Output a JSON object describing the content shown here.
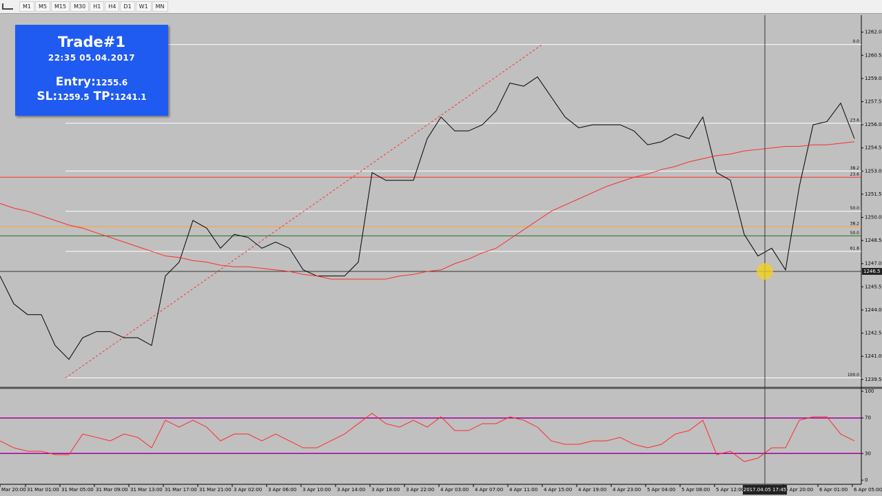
{
  "toolbar": {
    "timeframes": [
      "M1",
      "M5",
      "M15",
      "M30",
      "H1",
      "H4",
      "D1",
      "W1",
      "MN"
    ]
  },
  "trade_box": {
    "title": "Trade#1",
    "datetime": "22:35 05.04.2017",
    "entry_label": "Entry:",
    "entry": 1255.6,
    "sl_label": "SL:",
    "sl": 1259.5,
    "tp_label": "TP:",
    "tp": 1241.1
  },
  "crosshair": {
    "x": 55.5,
    "label": "2017.04.05 17:45"
  },
  "chart_data": [
    {
      "type": "line",
      "xlim": [
        0,
        62.5
      ],
      "ylim": [
        1239.0,
        1263.1
      ],
      "yticks": [
        {
          "value": 1262.0,
          "label": "1262.0"
        },
        1260.5,
        {
          "value": 1259.0,
          "label": "1259.0"
        },
        1257.5,
        {
          "value": 1256.0,
          "label": "1256.0"
        },
        1254.5,
        {
          "value": 1253.0,
          "label": "1253.0"
        },
        1251.5,
        {
          "value": 1250.0,
          "label": "1250.0"
        },
        1248.5,
        {
          "value": 1247.0,
          "label": "1247.0"
        },
        1245.5,
        {
          "value": 1244.0,
          "label": "1244.0"
        },
        1242.5,
        {
          "value": 1241.0,
          "label": "1241.0"
        },
        1239.5
      ],
      "series": [
        {
          "color": "#000000",
          "values": [
            1246.2,
            1244.4,
            1243.7,
            1243.7,
            1241.7,
            1240.8,
            1242.2,
            1242.6,
            1242.6,
            1242.2,
            1242.2,
            1241.7,
            1246.2,
            1247.1,
            1249.8,
            1249.3,
            1248.0,
            1248.9,
            1248.7,
            1248.0,
            1248.4,
            1248.0,
            1246.6,
            1246.2,
            1246.2,
            1246.2,
            1247.1,
            1252.9,
            1252.4,
            1252.4,
            1252.4,
            1255.1,
            1256.5,
            1255.6,
            1255.6,
            1256.0,
            1256.9,
            1258.7,
            1258.5,
            1259.1,
            1257.8,
            1256.5,
            1255.8,
            1256.0,
            1256.0,
            1256.0,
            1255.6,
            1254.7,
            1254.9,
            1255.4,
            1255.1,
            1256.5,
            1252.9,
            1252.4,
            1248.9,
            1247.5,
            1248.0,
            1246.6,
            1252.0,
            1256.0,
            1256.2,
            1257.4,
            1255.1
          ]
        },
        {
          "color": "#ff2a2a",
          "values": [
            1250.9,
            1250.6,
            1250.4,
            1250.1,
            1249.8,
            1249.5,
            1249.3,
            1249.0,
            1248.7,
            1248.4,
            1248.1,
            1247.8,
            1247.5,
            1247.4,
            1247.2,
            1247.1,
            1246.9,
            1246.8,
            1246.8,
            1246.7,
            1246.6,
            1246.5,
            1246.3,
            1246.2,
            1246.0,
            1246.0,
            1246.0,
            1246.0,
            1246.0,
            1246.2,
            1246.3,
            1246.5,
            1246.6,
            1247.0,
            1247.3,
            1247.7,
            1248.0,
            1248.6,
            1249.2,
            1249.8,
            1250.4,
            1250.8,
            1251.2,
            1251.6,
            1252.0,
            1252.3,
            1252.6,
            1252.8,
            1253.1,
            1253.3,
            1253.6,
            1253.8,
            1254.0,
            1254.1,
            1254.3,
            1254.4,
            1254.5,
            1254.6,
            1254.6,
            1254.7,
            1254.7,
            1254.8,
            1254.9
          ]
        }
      ],
      "levels": [
        {
          "value": 1261.2,
          "label": "0.0",
          "color": "#ffffff"
        },
        {
          "value": 1256.1,
          "label": "23.6",
          "color": "#ffffff"
        },
        {
          "value": 1253.0,
          "label": "38.2",
          "color": "#ffffff"
        },
        {
          "value": 1250.4,
          "label": "50.0",
          "color": "#ffffff"
        },
        {
          "value": 1247.8,
          "label": "61.8",
          "color": "#ffffff"
        },
        {
          "value": 1239.6,
          "label": "100.0",
          "color": "#ffffff"
        },
        {
          "value": 1252.6,
          "label": "23.6",
          "color": "#ff2a2a"
        },
        {
          "value": 1249.4,
          "label": "38.2",
          "color": "#ffa030"
        },
        {
          "value": 1248.8,
          "label": "50.0",
          "color": "#207020"
        }
      ],
      "current_price": 1246.5,
      "trendline": {
        "x": [
          4.75,
          39.35
        ],
        "y": [
          1239.6,
          1261.2
        ],
        "color": "#ff2a2a"
      }
    },
    {
      "type": "line",
      "xlim": [
        0,
        62.5
      ],
      "ylim": [
        0,
        100
      ],
      "yticks": [
        100,
        70,
        30,
        0
      ],
      "level_lines": [
        70,
        30
      ],
      "level_color": "#a000a0",
      "xticks": [
        {
          "value": 0,
          "label": "Mar 20:00"
        },
        {
          "value": 1.85,
          "label": "31 Mar 01:00"
        },
        {
          "value": 4.35,
          "label": "31 Mar 05:00"
        },
        {
          "value": 6.85,
          "label": "31 Mar 09:00"
        },
        {
          "value": 9.35,
          "label": "31 Mar 13:00"
        },
        {
          "value": 11.85,
          "label": "31 Mar 17:00"
        },
        {
          "value": 14.35,
          "label": "31 Mar 21:00"
        },
        {
          "value": 16.85,
          "label": "3 Apr 02:00"
        },
        {
          "value": 19.35,
          "label": "3 Apr 06:00"
        },
        {
          "value": 21.85,
          "label": "3 Apr 10:00"
        },
        {
          "value": 24.35,
          "label": "3 Apr 14:00"
        },
        {
          "value": 26.85,
          "label": "3 Apr 18:00"
        },
        {
          "value": 29.35,
          "label": "3 Apr 22:00"
        },
        {
          "value": 31.85,
          "label": "4 Apr 03:00"
        },
        {
          "value": 34.35,
          "label": "4 Apr 07:00"
        },
        {
          "value": 36.85,
          "label": "4 Apr 11:00"
        },
        {
          "value": 39.35,
          "label": "4 Apr 15:00"
        },
        {
          "value": 41.85,
          "label": "4 Apr 19:00"
        },
        {
          "value": 44.35,
          "label": "4 Apr 23:00"
        },
        {
          "value": 46.85,
          "label": "5 Apr 04:00"
        },
        {
          "value": 49.35,
          "label": "5 Apr 08:00"
        },
        {
          "value": 51.85,
          "label": "5 Apr 12:00"
        },
        {
          "value": 56.85,
          "label": "5 Apr 20:00"
        },
        {
          "value": 59.35,
          "label": "6 Apr 01:00"
        },
        {
          "value": 61.85,
          "label": "6 Apr 05:00"
        }
      ],
      "series": [
        {
          "color": "#ff2a2a",
          "values": [
            44.2,
            36.4,
            32.6,
            32.6,
            28.7,
            28.7,
            51.9,
            48.1,
            44.2,
            51.9,
            48.1,
            36.4,
            67.4,
            59.7,
            67.4,
            59.7,
            44.2,
            51.9,
            51.9,
            44.2,
            51.9,
            44.2,
            36.4,
            36.4,
            44.2,
            51.9,
            63.6,
            75.2,
            63.6,
            59.7,
            67.4,
            59.7,
            71.3,
            55.8,
            55.8,
            63.6,
            63.6,
            71.3,
            67.4,
            59.7,
            44.2,
            40.3,
            40.3,
            44.2,
            44.2,
            48.1,
            40.3,
            36.4,
            40.3,
            51.9,
            55.8,
            67.4,
            28.7,
            32.6,
            20.9,
            24.8,
            36.4,
            36.4,
            67.4,
            71.3,
            71.3,
            51.9,
            44.2
          ]
        }
      ]
    }
  ]
}
